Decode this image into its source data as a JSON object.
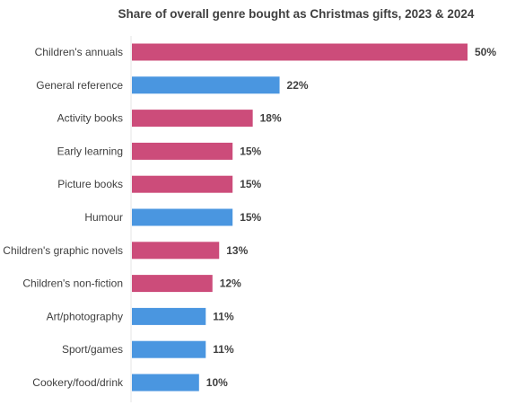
{
  "chart_data": {
    "type": "bar",
    "orientation": "horizontal",
    "title": "Share of overall genre bought as Christmas gifts, 2023 & 2024",
    "categories": [
      "Children's annuals",
      "General reference",
      "Activity books",
      "Early learning",
      "Picture books",
      "Humour",
      "Children's graphic novels",
      "Children's non-fiction",
      "Art/photography",
      "Sport/games",
      "Cookery/food/drink"
    ],
    "values": [
      50,
      22,
      18,
      15,
      15,
      15,
      13,
      12,
      11,
      11,
      10
    ],
    "value_labels": [
      "50%",
      "22%",
      "18%",
      "15%",
      "15%",
      "15%",
      "13%",
      "12%",
      "11%",
      "11%",
      "10%"
    ],
    "bar_colors": [
      "#cc4c7a",
      "#4a96e0",
      "#cc4c7a",
      "#cc4c7a",
      "#cc4c7a",
      "#4a96e0",
      "#cc4c7a",
      "#cc4c7a",
      "#4a96e0",
      "#4a96e0",
      "#4a96e0"
    ],
    "xlim": [
      0,
      50
    ],
    "xlabel": "",
    "ylabel": "",
    "grid": false,
    "legend": "none"
  }
}
